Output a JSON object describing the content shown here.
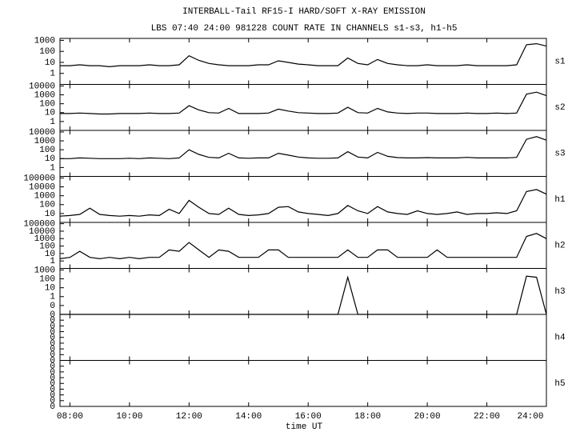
{
  "chart_data": {
    "type": "line",
    "title": "INTERBALL-Tail RF15-I HARD/SOFT X-RAY EMISSION",
    "subtitle": "LBS 07:40 24:00 981228  COUNT RATE IN CHANNELS s1-s3, h1-h5",
    "xlabel": "time UT",
    "xlim": [
      7.667,
      24
    ],
    "xticks": [
      {
        "value": 8,
        "label": "08:00"
      },
      {
        "value": 10,
        "label": "10:00"
      },
      {
        "value": 12,
        "label": "12:00"
      },
      {
        "value": 14,
        "label": "14:00"
      },
      {
        "value": 16,
        "label": "16:00"
      },
      {
        "value": 18,
        "label": "18:00"
      },
      {
        "value": 20,
        "label": "20:00"
      },
      {
        "value": 22,
        "label": "22:00"
      },
      {
        "value": 24,
        "label": "24:00"
      }
    ],
    "x": [
      7.67,
      8,
      8.33,
      8.67,
      9,
      9.33,
      9.67,
      10,
      10.33,
      10.67,
      11,
      11.33,
      11.67,
      12,
      12.33,
      12.67,
      13,
      13.33,
      13.67,
      14,
      14.33,
      14.67,
      15,
      15.33,
      15.67,
      16,
      16.33,
      16.67,
      17,
      17.33,
      17.67,
      18,
      18.33,
      18.67,
      19,
      19.33,
      19.67,
      20,
      20.33,
      20.67,
      21,
      21.33,
      21.67,
      22,
      22.33,
      22.67,
      23,
      23.33,
      23.67,
      24
    ],
    "color": "#000000",
    "panels": [
      {
        "name": "s1",
        "log": true,
        "ylim": [
          0.1,
          1500
        ],
        "yticks": [
          1000,
          100,
          10,
          1
        ],
        "values": [
          5,
          5,
          6,
          5,
          5,
          4,
          5,
          5,
          5,
          6,
          5,
          5,
          6,
          40,
          15,
          8,
          6,
          5,
          5,
          5,
          6,
          6,
          14,
          10,
          7,
          6,
          5,
          5,
          5,
          25,
          8,
          6,
          18,
          8,
          6,
          5,
          5,
          6,
          5,
          5,
          5,
          6,
          5,
          5,
          5,
          5,
          6,
          400,
          500,
          300
        ]
      },
      {
        "name": "s2",
        "log": true,
        "ylim": [
          0.1,
          15000
        ],
        "yticks": [
          10000,
          1000,
          100,
          10,
          1
        ],
        "values": [
          8,
          8,
          9,
          8,
          7,
          7,
          8,
          8,
          8,
          9,
          8,
          8,
          9,
          60,
          20,
          10,
          9,
          30,
          8,
          8,
          8,
          9,
          25,
          15,
          10,
          9,
          8,
          8,
          9,
          40,
          10,
          9,
          30,
          12,
          9,
          8,
          9,
          9,
          8,
          8,
          8,
          9,
          8,
          8,
          9,
          8,
          9,
          1200,
          2000,
          800
        ]
      },
      {
        "name": "s3",
        "log": true,
        "ylim": [
          0.1,
          15000
        ],
        "yticks": [
          10000,
          1000,
          100,
          10,
          1
        ],
        "values": [
          10,
          10,
          12,
          11,
          10,
          10,
          10,
          11,
          10,
          12,
          11,
          10,
          12,
          100,
          30,
          14,
          12,
          40,
          12,
          11,
          12,
          12,
          40,
          25,
          15,
          12,
          11,
          11,
          12,
          60,
          15,
          12,
          50,
          18,
          13,
          12,
          12,
          13,
          12,
          12,
          12,
          14,
          12,
          12,
          12,
          12,
          14,
          1500,
          3000,
          1200
        ]
      },
      {
        "name": "h1",
        "log": true,
        "ylim": [
          1,
          150000
        ],
        "yticks": [
          100000,
          10000,
          1000,
          100,
          10
        ],
        "values": [
          5,
          6,
          8,
          40,
          8,
          6,
          5,
          6,
          5,
          7,
          6,
          30,
          10,
          300,
          50,
          10,
          8,
          40,
          8,
          6,
          7,
          10,
          50,
          60,
          15,
          10,
          8,
          6,
          10,
          80,
          20,
          10,
          60,
          15,
          10,
          8,
          20,
          10,
          8,
          10,
          15,
          8,
          10,
          10,
          12,
          10,
          20,
          3000,
          5000,
          1500
        ]
      },
      {
        "name": "h2",
        "log": true,
        "ylim": [
          0.1,
          150000
        ],
        "yticks": [
          100000,
          10000,
          1000,
          100,
          10,
          1
        ],
        "values": [
          2,
          3,
          20,
          3,
          2,
          3,
          2,
          3,
          2,
          3,
          3,
          30,
          20,
          300,
          30,
          3,
          30,
          20,
          3,
          3,
          3,
          30,
          30,
          3,
          3,
          3,
          3,
          3,
          3,
          30,
          3,
          3,
          30,
          30,
          3,
          3,
          3,
          3,
          30,
          3,
          3,
          3,
          3,
          3,
          3,
          3,
          3,
          2000,
          5000,
          1000
        ]
      },
      {
        "name": "h3",
        "log": true,
        "ylim": [
          0.01,
          1500
        ],
        "yticks": [
          1000,
          100,
          10,
          1,
          {
            "value": 0.1,
            "label": "0"
          },
          {
            "value": 0.01,
            "label": "0"
          }
        ],
        "values": [
          0.01,
          0.01,
          0.01,
          0.01,
          0.01,
          0.01,
          0.01,
          0.01,
          0.01,
          0.01,
          0.01,
          0.01,
          0.01,
          0.01,
          0.01,
          0.01,
          0.01,
          0.01,
          0.01,
          0.01,
          0.01,
          0.01,
          0.01,
          0.01,
          0.01,
          0.01,
          0.01,
          0.01,
          0.01,
          150,
          0.01,
          0.01,
          0.01,
          0.01,
          0.01,
          0.01,
          0.01,
          0.01,
          0.01,
          0.01,
          0.01,
          0.01,
          0.01,
          0.01,
          0.01,
          0.01,
          0.01,
          200,
          150,
          0.01
        ]
      },
      {
        "name": "h4",
        "log": false,
        "ylim": [
          0,
          1
        ],
        "yticks": [
          {
            "value": 0,
            "label": "0"
          },
          {
            "value": 0.125,
            "label": "0"
          },
          {
            "value": 0.25,
            "label": "0"
          },
          {
            "value": 0.375,
            "label": "0"
          },
          {
            "value": 0.5,
            "label": "0"
          },
          {
            "value": 0.625,
            "label": "0"
          },
          {
            "value": 0.75,
            "label": "0"
          },
          {
            "value": 0.875,
            "label": "0"
          }
        ]
      },
      {
        "name": "h5",
        "log": false,
        "ylim": [
          0,
          1
        ],
        "yticks": [
          {
            "value": 0,
            "label": "0"
          },
          {
            "value": 0.125,
            "label": "0"
          },
          {
            "value": 0.25,
            "label": "0"
          },
          {
            "value": 0.375,
            "label": "0"
          },
          {
            "value": 0.5,
            "label": "0"
          },
          {
            "value": 0.625,
            "label": "0"
          },
          {
            "value": 0.75,
            "label": "0"
          },
          {
            "value": 0.875,
            "label": "0"
          }
        ]
      }
    ]
  }
}
